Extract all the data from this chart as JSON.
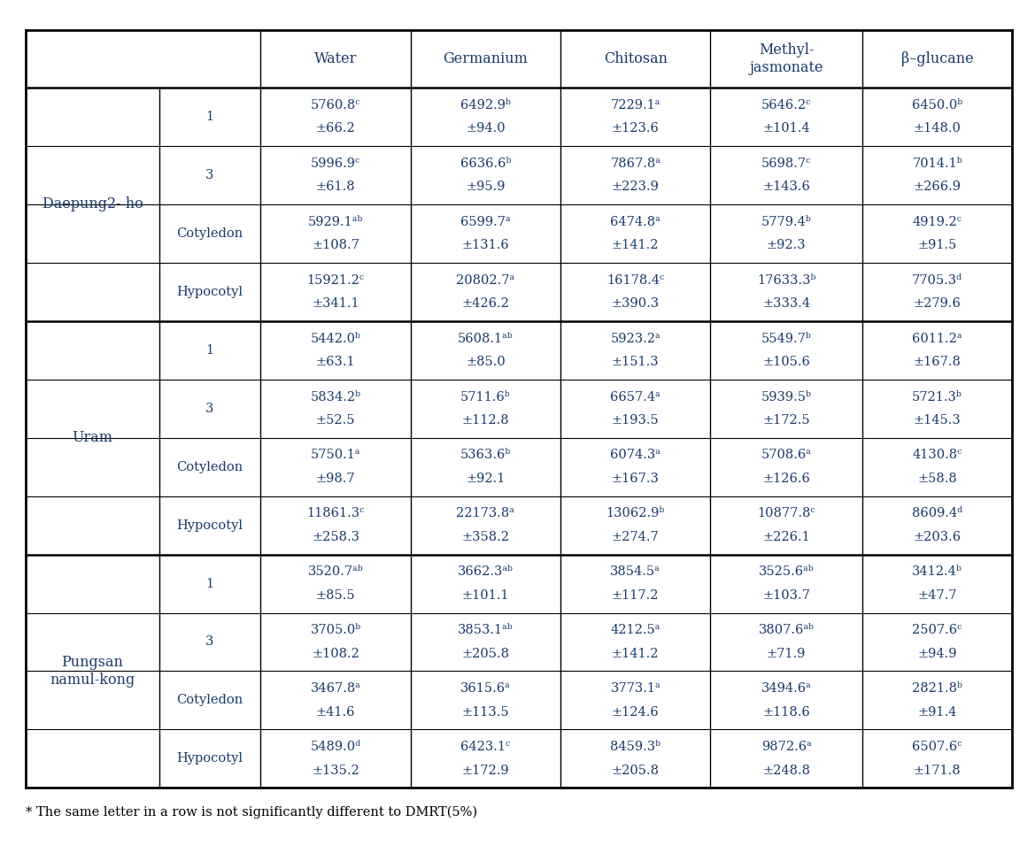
{
  "col_headers": [
    "Water",
    "Germanium",
    "Chitosan",
    "Methyl-\njasmonate",
    "β–glucane"
  ],
  "footer_note": "* The same letter in a row is not significantly different to DMRT(5%)",
  "sections": [
    {
      "cultivar": "Daepung2- ho",
      "rows": [
        {
          "period": "1",
          "line1": [
            "5760.8ᶜ",
            "6492.9ᵇ",
            "7229.1ᵃ",
            "5646.2ᶜ",
            "6450.0ᵇ"
          ],
          "line2": [
            "±66.2",
            "±94.0",
            "±123.6",
            "±101.4",
            "±148.0"
          ]
        },
        {
          "period": "3",
          "line1": [
            "5996.9ᶜ",
            "6636.6ᵇ",
            "7867.8ᵃ",
            "5698.7ᶜ",
            "7014.1ᵇ"
          ],
          "line2": [
            "±61.8",
            "±95.9",
            "±223.9",
            "±143.6",
            "±266.9"
          ]
        },
        {
          "period": "Cotyledon",
          "line1": [
            "5929.1ᵃᵇ",
            "6599.7ᵃ",
            "6474.8ᵃ",
            "5779.4ᵇ",
            "4919.2ᶜ"
          ],
          "line2": [
            "±108.7",
            "±131.6",
            "±141.2",
            "±92.3",
            "±91.5"
          ]
        },
        {
          "period": "Hypocotyl",
          "line1": [
            "15921.2ᶜ",
            "20802.7ᵃ",
            "16178.4ᶜ",
            "17633.3ᵇ",
            "7705.3ᵈ"
          ],
          "line2": [
            "±341.1",
            "±426.2",
            "±390.3",
            "±333.4",
            "±279.6"
          ]
        }
      ]
    },
    {
      "cultivar": "Uram",
      "rows": [
        {
          "period": "1",
          "line1": [
            "5442.0ᵇ",
            "5608.1ᵃᵇ",
            "5923.2ᵃ",
            "5549.7ᵇ",
            "6011.2ᵃ"
          ],
          "line2": [
            "±63.1",
            "±85.0",
            "±151.3",
            "±105.6",
            "±167.8"
          ]
        },
        {
          "period": "3",
          "line1": [
            "5834.2ᵇ",
            "5711.6ᵇ",
            "6657.4ᵃ",
            "5939.5ᵇ",
            "5721.3ᵇ"
          ],
          "line2": [
            "±52.5",
            "±112.8",
            "±193.5",
            "±172.5",
            "±145.3"
          ]
        },
        {
          "period": "Cotyledon",
          "line1": [
            "5750.1ᵃ",
            "5363.6ᵇ",
            "6074.3ᵃ",
            "5708.6ᵃ",
            "4130.8ᶜ"
          ],
          "line2": [
            "±98.7",
            "±92.1",
            "±167.3",
            "±126.6",
            "±58.8"
          ]
        },
        {
          "period": "Hypocotyl",
          "line1": [
            "11861.3ᶜ",
            "22173.8ᵃ",
            "13062.9ᵇ",
            "10877.8ᶜ",
            "8609.4ᵈ"
          ],
          "line2": [
            "±258.3",
            "±358.2",
            "±274.7",
            "±226.1",
            "±203.6"
          ]
        }
      ]
    },
    {
      "cultivar": "Pungsan\nnamul-kong",
      "rows": [
        {
          "period": "1",
          "line1": [
            "3520.7ᵃᵇ",
            "3662.3ᵃᵇ",
            "3854.5ᵃ",
            "3525.6ᵃᵇ",
            "3412.4ᵇ"
          ],
          "line2": [
            "±85.5",
            "±101.1",
            "±117.2",
            "±103.7",
            "±47.7"
          ]
        },
        {
          "period": "3",
          "line1": [
            "3705.0ᵇ",
            "3853.1ᵃᵇ",
            "4212.5ᵃ",
            "3807.6ᵃᵇ",
            "2507.6ᶜ"
          ],
          "line2": [
            "±108.2",
            "±205.8",
            "±141.2",
            "±71.9",
            "±94.9"
          ]
        },
        {
          "period": "Cotyledon",
          "line1": [
            "3467.8ᵃ",
            "3615.6ᵃ",
            "3773.1ᵃ",
            "3494.6ᵃ",
            "2821.8ᵇ"
          ],
          "line2": [
            "±41.6",
            "±113.5",
            "±124.6",
            "±118.6",
            "±91.4"
          ]
        },
        {
          "period": "Hypocotyl",
          "line1": [
            "5489.0ᵈ",
            "6423.1ᶜ",
            "8459.3ᵇ",
            "9872.6ᵃ",
            "6507.6ᶜ"
          ],
          "line2": [
            "±135.2",
            "±172.9",
            "±205.8",
            "±248.8",
            "±171.8"
          ]
        }
      ]
    }
  ],
  "text_color": "#1a3a6b",
  "font_size_header": 11.5,
  "font_size_period": 10.5,
  "font_size_cell": 10.5,
  "font_size_cultivar": 11.5,
  "font_size_footer": 10.5
}
